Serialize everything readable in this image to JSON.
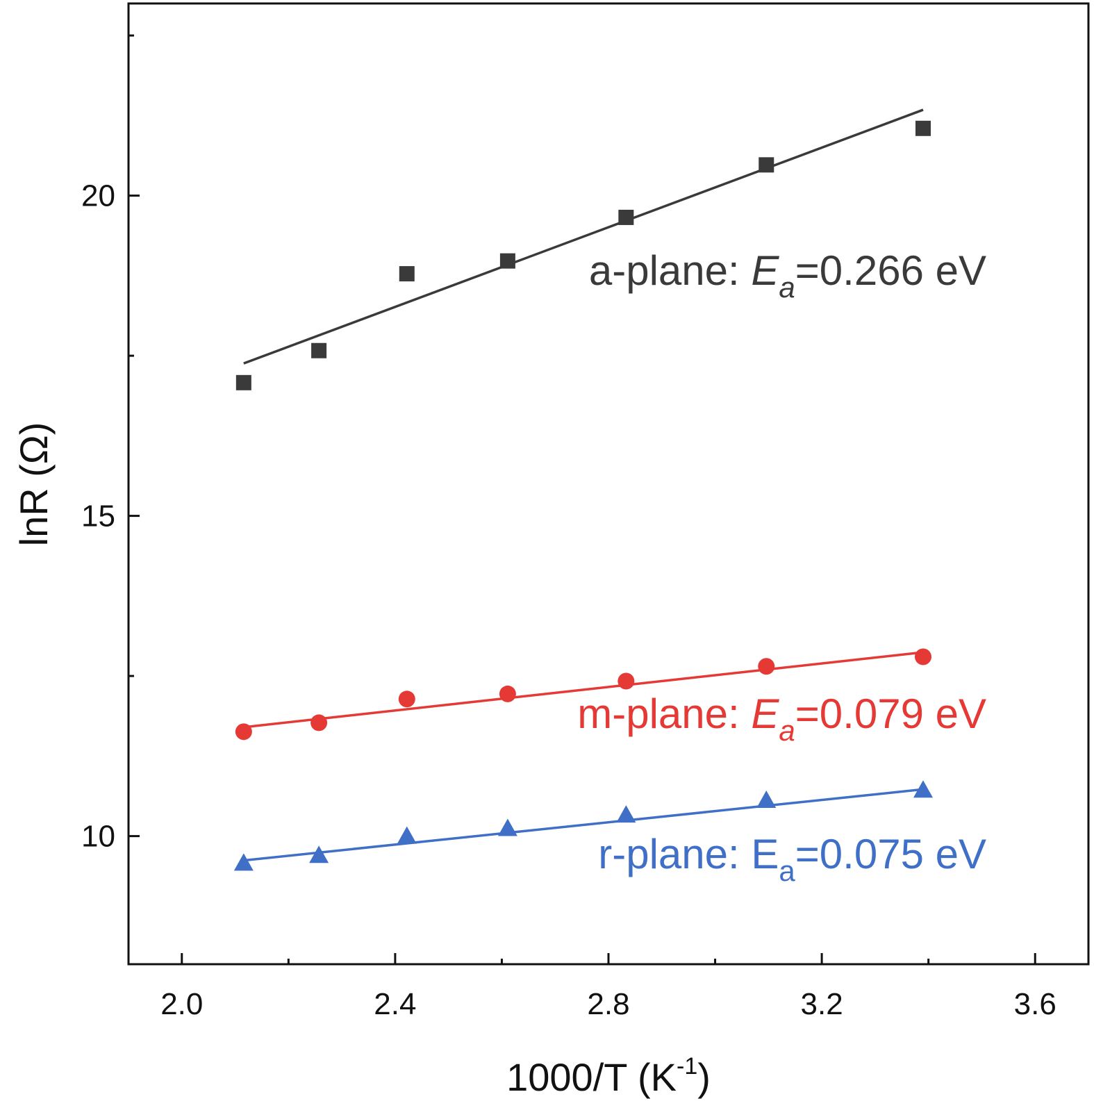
{
  "chart_data": {
    "type": "scatter",
    "xlabel": {
      "base": "1000/T (K",
      "sup": "-1",
      "tail": ")"
    },
    "ylabel": "lnR (Ω)",
    "xlim": [
      1.9,
      3.7
    ],
    "ylim": [
      8.0,
      23.0
    ],
    "xticks": [
      2.0,
      2.4,
      2.8,
      3.2,
      3.6
    ],
    "xtick_labels": [
      "2.0",
      "2.4",
      "2.8",
      "3.2",
      "3.6"
    ],
    "xminor": [
      2.2,
      2.6,
      3.0,
      3.4
    ],
    "yticks": [
      10,
      15,
      20
    ],
    "ytick_labels": [
      "10",
      "15",
      "20"
    ],
    "yminor": [
      12.5,
      17.5,
      22.5
    ],
    "grid": false,
    "legend": "none",
    "series": [
      {
        "marker": "square",
        "color": "#3a3a3a",
        "x": [
          2.116,
          2.257,
          2.422,
          2.611,
          2.833,
          3.096,
          3.39
        ],
        "y": [
          17.08,
          17.58,
          18.78,
          18.98,
          19.66,
          20.48,
          21.05
        ],
        "fit": {
          "x": [
            2.116,
            3.39
          ],
          "y": [
            17.38,
            21.34
          ]
        },
        "label": {
          "prefix": "a-plane: ",
          "sym": "E",
          "sub": "a",
          "value": "=0.266 eV",
          "italic": true
        }
      },
      {
        "marker": "circle",
        "color": "#e53935",
        "x": [
          2.116,
          2.257,
          2.422,
          2.611,
          2.833,
          3.096,
          3.39
        ],
        "y": [
          11.63,
          11.77,
          12.14,
          12.22,
          12.42,
          12.65,
          12.8
        ],
        "fit": {
          "x": [
            2.116,
            3.39
          ],
          "y": [
            11.7,
            12.87
          ]
        },
        "label": {
          "prefix": "m-plane: ",
          "sym": "E",
          "sub": "a",
          "value": "=0.079 eV",
          "italic": true
        }
      },
      {
        "marker": "triangle",
        "color": "#3f6fc6",
        "x": [
          2.116,
          2.257,
          2.422,
          2.611,
          2.833,
          3.096,
          3.39
        ],
        "y": [
          9.58,
          9.7,
          10.0,
          10.12,
          10.33,
          10.56,
          10.72
        ],
        "fit": {
          "x": [
            2.116,
            3.39
          ],
          "y": [
            9.62,
            10.73
          ]
        },
        "label": {
          "prefix": "r-plane: ",
          "sym": "E",
          "sub": "a",
          "value": "=0.075 eV",
          "italic": false
        }
      }
    ]
  }
}
